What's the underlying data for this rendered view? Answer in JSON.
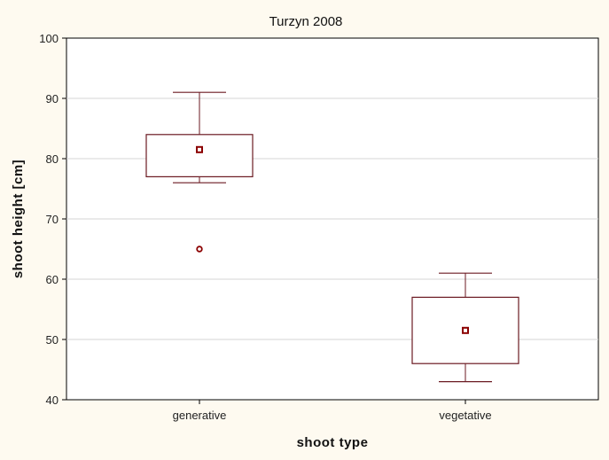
{
  "chart_data": {
    "type": "box",
    "title": "Turzyn 2008",
    "xlabel": "shoot type",
    "ylabel": "shoot height [cm]",
    "ylim": [
      40,
      100
    ],
    "yticks": [
      40,
      50,
      60,
      70,
      80,
      90,
      100
    ],
    "categories": [
      "generative",
      "vegetative"
    ],
    "series": [
      {
        "category": "generative",
        "median": 81.5,
        "q1": 77,
        "q3": 84,
        "whisker_low": 76,
        "whisker_high": 91,
        "outliers": [
          65
        ]
      },
      {
        "category": "vegetative",
        "median": 51.5,
        "q1": 46,
        "q3": 57,
        "whisker_low": 43,
        "whisker_high": 61,
        "outliers": []
      }
    ],
    "grid": true,
    "colors": {
      "box": "#6b1a22",
      "median_marker": "#8b0000",
      "grid": "#d4d4d4",
      "background": "#fefaf0",
      "plot_background": "#ffffff"
    }
  }
}
